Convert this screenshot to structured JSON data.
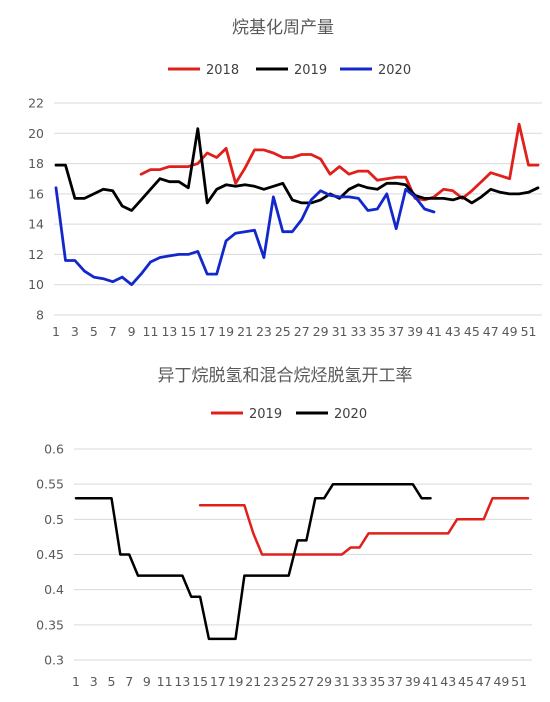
{
  "chart_data": [
    {
      "type": "line",
      "title": "烷基化周产量",
      "xlabel": "",
      "ylabel": "",
      "ylim": [
        8,
        22
      ],
      "yticks": [
        8,
        10,
        12,
        14,
        16,
        18,
        20,
        22
      ],
      "x_tick_labels": [
        "1",
        "3",
        "5",
        "7",
        "9",
        "11",
        "13",
        "15",
        "17",
        "19",
        "21",
        "23",
        "25",
        "27",
        "29",
        "31",
        "33",
        "35",
        "37",
        "39",
        "41",
        "43",
        "45",
        "47",
        "49",
        "51"
      ],
      "legend_position": "top",
      "grid": true,
      "series": [
        {
          "name": "2018",
          "color": "#e0201b",
          "x": [
            10,
            11,
            12,
            13,
            14,
            15,
            16,
            17,
            18,
            19,
            20,
            21,
            22,
            23,
            24,
            25,
            26,
            27,
            28,
            29,
            30,
            31,
            32,
            33,
            34,
            35,
            36,
            37,
            38,
            39,
            40,
            41,
            42,
            43,
            44,
            45,
            46,
            47,
            48,
            49,
            50,
            51,
            52
          ],
          "values": [
            17.3,
            17.6,
            17.6,
            17.8,
            17.8,
            17.8,
            18.0,
            18.7,
            18.4,
            19.0,
            16.7,
            17.7,
            18.9,
            18.9,
            18.7,
            18.4,
            18.4,
            18.6,
            18.6,
            18.3,
            17.3,
            17.8,
            17.3,
            17.5,
            17.5,
            16.9,
            17.0,
            17.1,
            17.1,
            15.7,
            15.6,
            15.8,
            16.3,
            16.2,
            15.7,
            16.2,
            16.8,
            17.4,
            17.2,
            17.0,
            20.6,
            17.9,
            17.9
          ]
        },
        {
          "name": "2019",
          "color": "#000000",
          "x": [
            1,
            2,
            3,
            4,
            5,
            6,
            7,
            8,
            9,
            10,
            11,
            12,
            13,
            14,
            15,
            16,
            17,
            18,
            19,
            20,
            21,
            22,
            23,
            24,
            25,
            26,
            27,
            28,
            29,
            30,
            31,
            32,
            33,
            34,
            35,
            36,
            37,
            38,
            39,
            40,
            41,
            42,
            43,
            44,
            45,
            46,
            47,
            48,
            49,
            50,
            51,
            52
          ],
          "values": [
            17.9,
            17.9,
            15.7,
            15.7,
            16.0,
            16.3,
            16.2,
            15.2,
            14.9,
            15.6,
            16.3,
            17.0,
            16.8,
            16.8,
            16.4,
            20.3,
            15.4,
            16.3,
            16.6,
            16.5,
            16.6,
            16.5,
            16.3,
            16.5,
            16.7,
            15.6,
            15.4,
            15.4,
            15.6,
            16.0,
            15.7,
            16.3,
            16.6,
            16.4,
            16.3,
            16.7,
            16.7,
            16.6,
            15.9,
            15.7,
            15.7,
            15.7,
            15.6,
            15.8,
            15.4,
            15.8,
            16.3,
            16.1,
            16.0,
            16.0,
            16.1,
            16.4
          ]
        },
        {
          "name": "2020",
          "color": "#1328cc",
          "x": [
            1,
            2,
            3,
            4,
            5,
            6,
            7,
            8,
            9,
            10,
            11,
            12,
            13,
            14,
            15,
            16,
            17,
            18,
            19,
            20,
            21,
            22,
            23,
            24,
            25,
            26,
            27,
            28,
            29,
            30,
            31,
            32,
            33,
            34,
            35,
            36,
            37,
            38,
            39,
            40,
            41
          ],
          "values": [
            16.4,
            11.6,
            11.6,
            10.9,
            10.5,
            10.4,
            10.2,
            10.5,
            10.0,
            10.7,
            11.5,
            11.8,
            11.9,
            12.0,
            12.0,
            12.2,
            10.7,
            10.7,
            12.9,
            13.4,
            13.5,
            13.6,
            11.8,
            15.8,
            13.5,
            13.5,
            14.3,
            15.6,
            16.2,
            15.9,
            15.8,
            15.8,
            15.7,
            14.9,
            15.0,
            16.0,
            13.7,
            16.3,
            15.8,
            15.0,
            14.8
          ]
        }
      ]
    },
    {
      "type": "line",
      "title": "异丁烷脱氢和混合烷烃脱氢开工率",
      "xlabel": "",
      "ylabel": "",
      "ylim": [
        0.3,
        0.6
      ],
      "yticks": [
        "0.3",
        "0.35",
        "0.4",
        "0.45",
        "0.5",
        "0.55",
        "0.6"
      ],
      "x_tick_labels": [
        "1",
        "3",
        "5",
        "7",
        "9",
        "11",
        "13",
        "15",
        "17",
        "19",
        "21",
        "23",
        "25",
        "27",
        "29",
        "31",
        "33",
        "35",
        "37",
        "39",
        "41",
        "43",
        "45",
        "47",
        "49",
        "51"
      ],
      "legend_position": "top",
      "grid": true,
      "series": [
        {
          "name": "2019",
          "color": "#e0201b",
          "x": [
            15,
            16,
            17,
            18,
            19,
            20,
            21,
            22,
            23,
            24,
            25,
            26,
            27,
            28,
            29,
            30,
            31,
            32,
            33,
            34,
            35,
            36,
            37,
            38,
            39,
            40,
            41,
            42,
            43,
            44,
            45,
            46,
            47,
            48,
            49,
            50,
            51,
            52
          ],
          "values": [
            0.52,
            0.52,
            0.52,
            0.52,
            0.52,
            0.52,
            0.48,
            0.45,
            0.45,
            0.45,
            0.45,
            0.45,
            0.45,
            0.45,
            0.45,
            0.45,
            0.45,
            0.46,
            0.46,
            0.48,
            0.48,
            0.48,
            0.48,
            0.48,
            0.48,
            0.48,
            0.48,
            0.48,
            0.48,
            0.5,
            0.5,
            0.5,
            0.5,
            0.53,
            0.53,
            0.53,
            0.53,
            0.53
          ]
        },
        {
          "name": "2020",
          "color": "#000000",
          "x": [
            1,
            2,
            3,
            4,
            5,
            6,
            7,
            8,
            9,
            10,
            11,
            12,
            13,
            14,
            15,
            16,
            17,
            18,
            19,
            20,
            21,
            22,
            23,
            24,
            25,
            26,
            27,
            28,
            29,
            30,
            31,
            32,
            33,
            34,
            35,
            36,
            37,
            38,
            39,
            40,
            41
          ],
          "values": [
            0.53,
            0.53,
            0.53,
            0.53,
            0.53,
            0.45,
            0.45,
            0.42,
            0.42,
            0.42,
            0.42,
            0.42,
            0.42,
            0.39,
            0.39,
            0.33,
            0.33,
            0.33,
            0.33,
            0.42,
            0.42,
            0.42,
            0.42,
            0.42,
            0.42,
            0.47,
            0.47,
            0.53,
            0.53,
            0.55,
            0.55,
            0.55,
            0.55,
            0.55,
            0.55,
            0.55,
            0.55,
            0.55,
            0.55,
            0.53,
            0.53
          ]
        }
      ]
    }
  ]
}
